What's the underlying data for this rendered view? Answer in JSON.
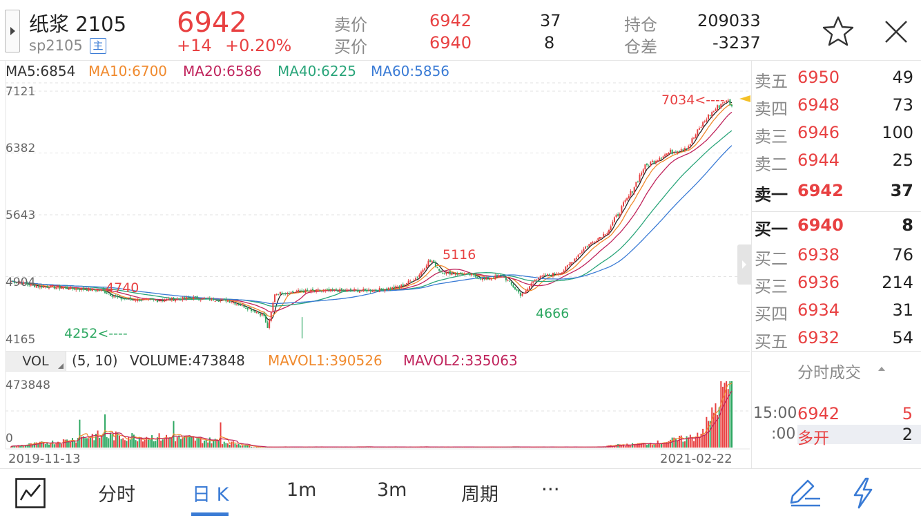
{
  "header": {
    "contract_name": "纸浆 2105",
    "contract_code": "sp2105",
    "main_badge": "主",
    "last_price": "6942",
    "change_abs": "+14",
    "change_pct": "+0.20%",
    "ask_label": "卖价",
    "ask_price": "6942",
    "ask_vol": "37",
    "bid_label": "买价",
    "bid_price": "6940",
    "bid_vol": "8",
    "open_interest_label": "持仓",
    "open_interest": "209033",
    "oi_change_label": "仓差",
    "oi_change": "-3237"
  },
  "icons": {
    "star": "star-icon",
    "close": "close-icon",
    "expand": "chevron-right-icon",
    "timeline": "line-chart-icon",
    "draw": "pen-icon",
    "flash": "lightning-icon",
    "more": "more-icon"
  },
  "colors": {
    "up": "#e84142",
    "down": "#2ea862",
    "ma5": "#222222",
    "ma10": "#f08a2e",
    "ma20": "#c0245c",
    "ma40": "#2aa57a",
    "ma60": "#3a7bd5",
    "accent": "#3a7bd5"
  },
  "ma_legend": [
    {
      "text": "MA5:6854",
      "color": "#333333"
    },
    {
      "text": "MA10:6700",
      "color": "#f08a2e"
    },
    {
      "text": "MA20:6586",
      "color": "#c0245c"
    },
    {
      "text": "MA40:6225",
      "color": "#2aa57a"
    },
    {
      "text": "MA60:5856",
      "color": "#3a7bd5"
    }
  ],
  "volume_legend": {
    "button": "VOL",
    "params": "(5, 10)",
    "volume": "VOLUME:473848",
    "mavol1": "MAVOL1:390526",
    "mavol2": "MAVOL2:335063"
  },
  "chart_data": {
    "type": "candlestick",
    "title": "",
    "price_axis": {
      "ticks": [
        "7121",
        "6382",
        "5643",
        "4904",
        "4165"
      ],
      "range": [
        4165,
        7121
      ]
    },
    "volume_axis": {
      "ticks": [
        "473848",
        "0"
      ],
      "range": [
        0,
        473848
      ]
    },
    "x_axis": {
      "start_label": "2019-11-13",
      "end_label": "2021-02-22"
    },
    "annotations": [
      {
        "text": "4740",
        "kind": "local-high"
      },
      {
        "text": "4252<----",
        "kind": "period-low"
      },
      {
        "text": "5116",
        "kind": "local-high"
      },
      {
        "text": "4666",
        "kind": "local-low"
      },
      {
        "text": "7034<----",
        "kind": "period-high"
      }
    ],
    "price_anchors": [
      [
        0,
        4850
      ],
      [
        15,
        4790
      ],
      [
        35,
        4760
      ],
      [
        50,
        4740
      ],
      [
        60,
        4640
      ],
      [
        80,
        4620
      ],
      [
        100,
        4650
      ],
      [
        120,
        4620
      ],
      [
        130,
        4540
      ],
      [
        140,
        4440
      ],
      [
        142,
        4252
      ],
      [
        146,
        4700
      ],
      [
        160,
        4730
      ],
      [
        200,
        4740
      ],
      [
        215,
        4780
      ],
      [
        225,
        4900
      ],
      [
        232,
        5116
      ],
      [
        238,
        4960
      ],
      [
        255,
        4920
      ],
      [
        262,
        4870
      ],
      [
        272,
        4920
      ],
      [
        283,
        4666
      ],
      [
        290,
        4880
      ],
      [
        305,
        4960
      ],
      [
        318,
        5260
      ],
      [
        330,
        5440
      ],
      [
        343,
        5900
      ],
      [
        350,
        6200
      ],
      [
        360,
        6350
      ],
      [
        375,
        6470
      ],
      [
        385,
        6800
      ],
      [
        392,
        6950
      ],
      [
        396,
        7034
      ],
      [
        399,
        6942
      ]
    ],
    "volume_anchors": [
      [
        0,
        0.02
      ],
      [
        30,
        0.1
      ],
      [
        45,
        0.18
      ],
      [
        75,
        0.16
      ],
      [
        95,
        0.14
      ],
      [
        115,
        0.1
      ],
      [
        125,
        0.06
      ],
      [
        135,
        0.01
      ],
      [
        300,
        0.01
      ],
      [
        340,
        0.04
      ],
      [
        360,
        0.08
      ],
      [
        378,
        0.16
      ],
      [
        386,
        0.35
      ],
      [
        392,
        0.75
      ],
      [
        396,
        0.95
      ],
      [
        399,
        1.0
      ]
    ],
    "moving_averages": [
      "MA5",
      "MA10",
      "MA20",
      "MA40",
      "MA60"
    ],
    "volume_averages": [
      "MAVOL1",
      "MAVOL2"
    ]
  },
  "orderbook": {
    "asks": [
      {
        "label": "卖五",
        "price": "6950",
        "vol": "49"
      },
      {
        "label": "卖四",
        "price": "6948",
        "vol": "73"
      },
      {
        "label": "卖三",
        "price": "6946",
        "vol": "100"
      },
      {
        "label": "卖二",
        "price": "6944",
        "vol": "25"
      },
      {
        "label": "卖一",
        "price": "6942",
        "vol": "37"
      }
    ],
    "bids": [
      {
        "label": "买一",
        "price": "6940",
        "vol": "8"
      },
      {
        "label": "买二",
        "price": "6938",
        "vol": "76"
      },
      {
        "label": "买三",
        "price": "6936",
        "vol": "214"
      },
      {
        "label": "买四",
        "price": "6934",
        "vol": "31"
      },
      {
        "label": "买五",
        "price": "6932",
        "vol": "54"
      }
    ],
    "ticks_title": "分时成交",
    "ticks": [
      {
        "time": "15:00",
        "price": "6942",
        "vol": "5"
      },
      {
        "time": ":00",
        "price": "多开",
        "vol": "2"
      }
    ]
  },
  "toolbar": {
    "tabs": [
      {
        "label": "分时",
        "active": false
      },
      {
        "label": "日 K",
        "active": true
      },
      {
        "label": "1m",
        "active": false
      },
      {
        "label": "3m",
        "active": false
      },
      {
        "label": "周期",
        "active": false
      }
    ],
    "more": "···"
  }
}
